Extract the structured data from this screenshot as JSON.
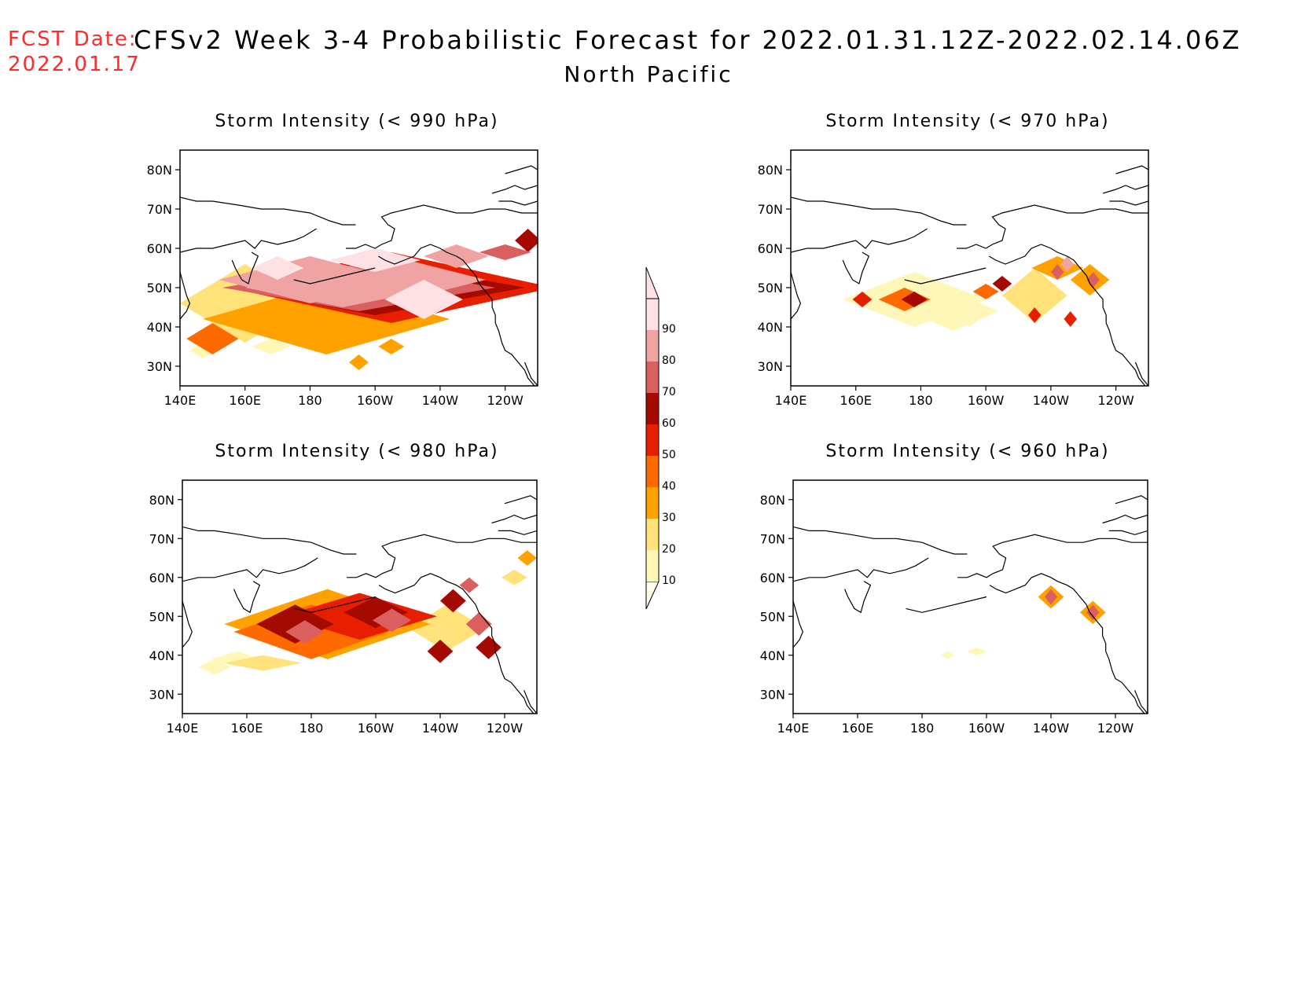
{
  "header": {
    "fcst_label": "FCST Date:",
    "fcst_date": "2022.01.17",
    "title": "CFSv2 Week 3-4 Probabilistic Forecast for 2022.01.31.12Z-2022.02.14.06Z",
    "subtitle": "North Pacific"
  },
  "axes": {
    "lat_ticks": [
      "80N",
      "70N",
      "60N",
      "50N",
      "40N",
      "30N"
    ],
    "lon_ticks": [
      "140E",
      "160E",
      "180",
      "160W",
      "140W",
      "120W"
    ]
  },
  "panels": [
    {
      "title": "Storm Intensity (< 990 hPa)"
    },
    {
      "title": "Storm Intensity (< 970 hPa)"
    },
    {
      "title": "Storm Intensity (< 980 hPa)"
    },
    {
      "title": "Storm Intensity (< 960 hPa)"
    }
  ],
  "colorbar": {
    "levels": [
      "10",
      "20",
      "30",
      "40",
      "50",
      "60",
      "70",
      "80",
      "90"
    ],
    "colors": [
      "#fff7b8",
      "#ffe27a",
      "#ffa200",
      "#ff6a00",
      "#e81e00",
      "#a50a00",
      "#d9605e",
      "#efa3a3",
      "#fde1e4"
    ]
  },
  "colors": {
    "fcst": "#ff2a2a",
    "line": "#000000",
    "background": "#ffffff"
  }
}
